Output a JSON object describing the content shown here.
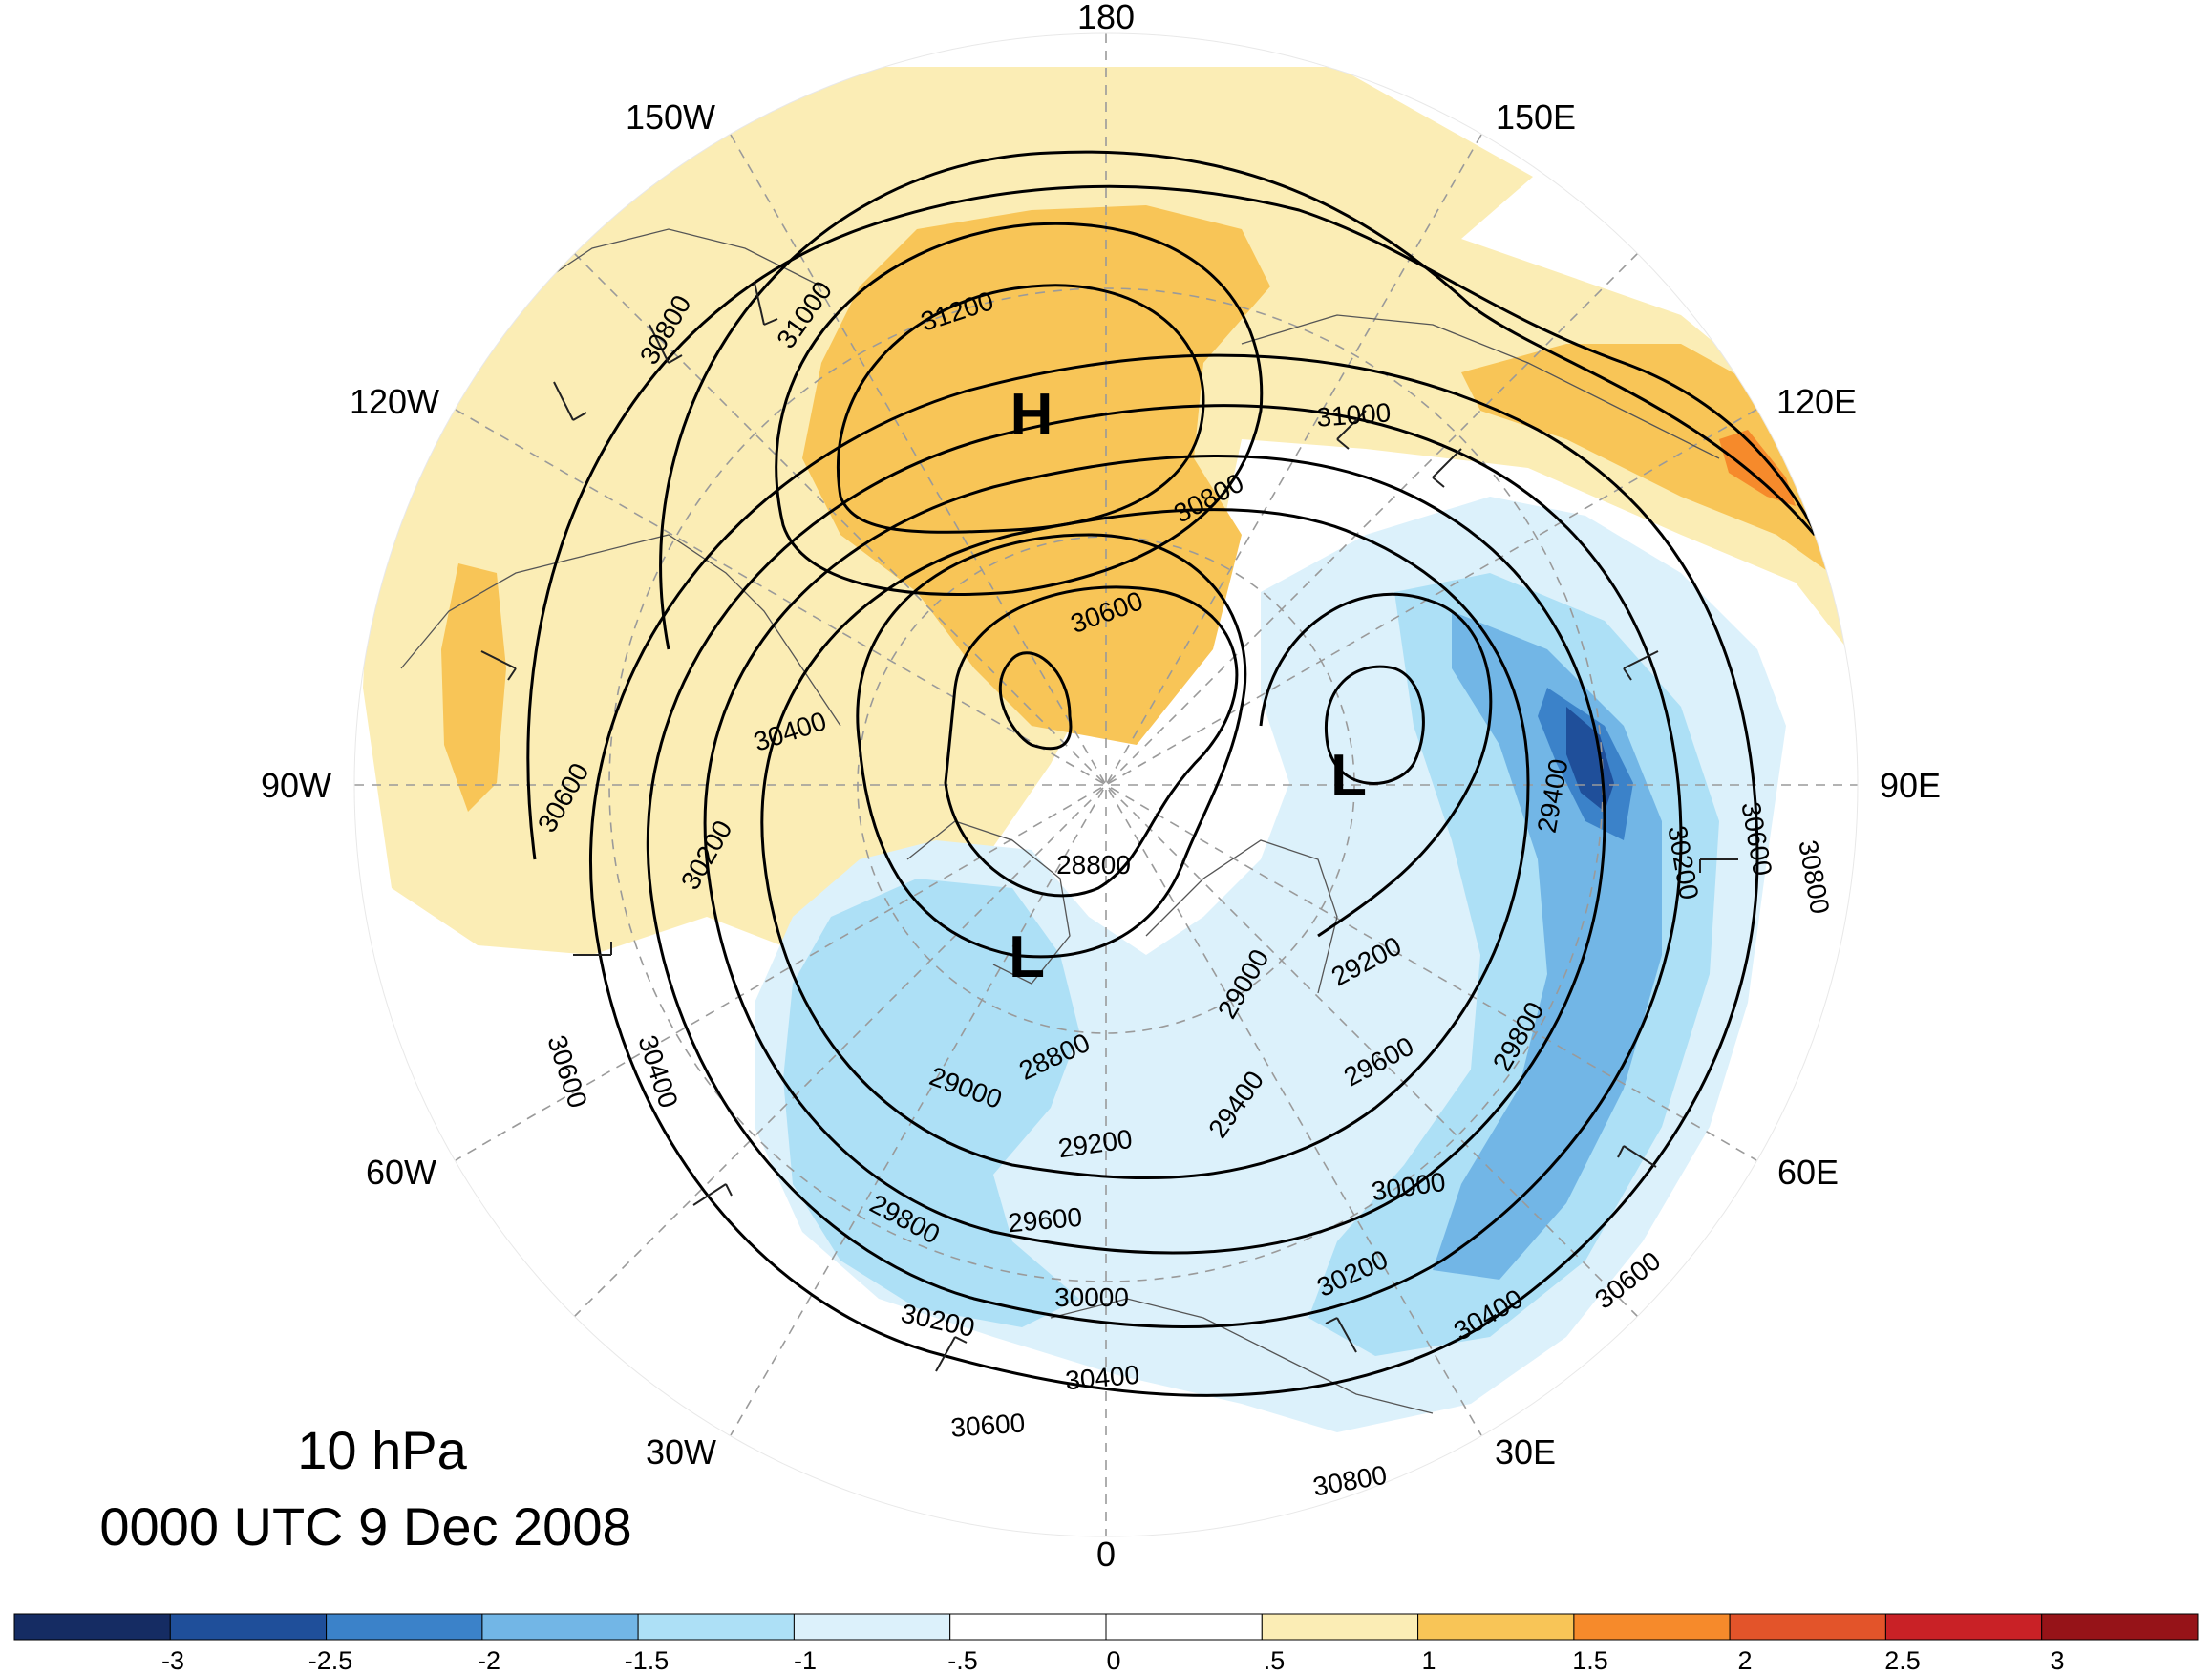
{
  "map": {
    "level": "10 hPa",
    "valid_time": "0000 UTC 9 Dec 2008",
    "longitude_labels": [
      {
        "text": "180",
        "lon": 180
      },
      {
        "text": "150E",
        "lon": 150
      },
      {
        "text": "120E",
        "lon": 120
      },
      {
        "text": "90E",
        "lon": 90
      },
      {
        "text": "60E",
        "lon": 60
      },
      {
        "text": "30E",
        "lon": 30
      },
      {
        "text": "0",
        "lon": 0
      },
      {
        "text": "30W",
        "lon": -30
      },
      {
        "text": "60W",
        "lon": -60
      },
      {
        "text": "90W",
        "lon": -90
      },
      {
        "text": "120W",
        "lon": -120
      },
      {
        "text": "150W",
        "lon": -150
      }
    ],
    "pressure_centers": [
      {
        "symbol": "H",
        "type": "high"
      },
      {
        "symbol": "L",
        "type": "low"
      },
      {
        "symbol": "L",
        "type": "low"
      }
    ],
    "contour_labels": [
      "31200",
      "31000",
      "30800",
      "31000",
      "30800",
      "30600",
      "30400",
      "30600",
      "30200",
      "30400",
      "30600",
      "28800",
      "28800",
      "29000",
      "29200",
      "29000",
      "29200",
      "29400",
      "29600",
      "29800",
      "29400",
      "30200",
      "30600",
      "30800",
      "29800",
      "30000",
      "29600",
      "30200",
      "30000",
      "30200",
      "30400",
      "30600",
      "30400",
      "30600",
      "30800"
    ],
    "colors": {
      "palette": [
        "#152c63",
        "#1f4f9a",
        "#3b82c9",
        "#72b6e6",
        "#ade0f6",
        "#dcf1fb",
        "#ffffff",
        "#ffffff",
        "#fbedb5",
        "#f8c557",
        "#f68a2b",
        "#e3542a",
        "#c92126",
        "#961318"
      ]
    }
  },
  "colorbar": {
    "tick_labels": [
      "-3",
      "-2.5",
      "-2",
      "-1.5",
      "-1",
      "-.5",
      "0",
      ".5",
      "1",
      "1.5",
      "2",
      "2.5",
      "3"
    ]
  }
}
